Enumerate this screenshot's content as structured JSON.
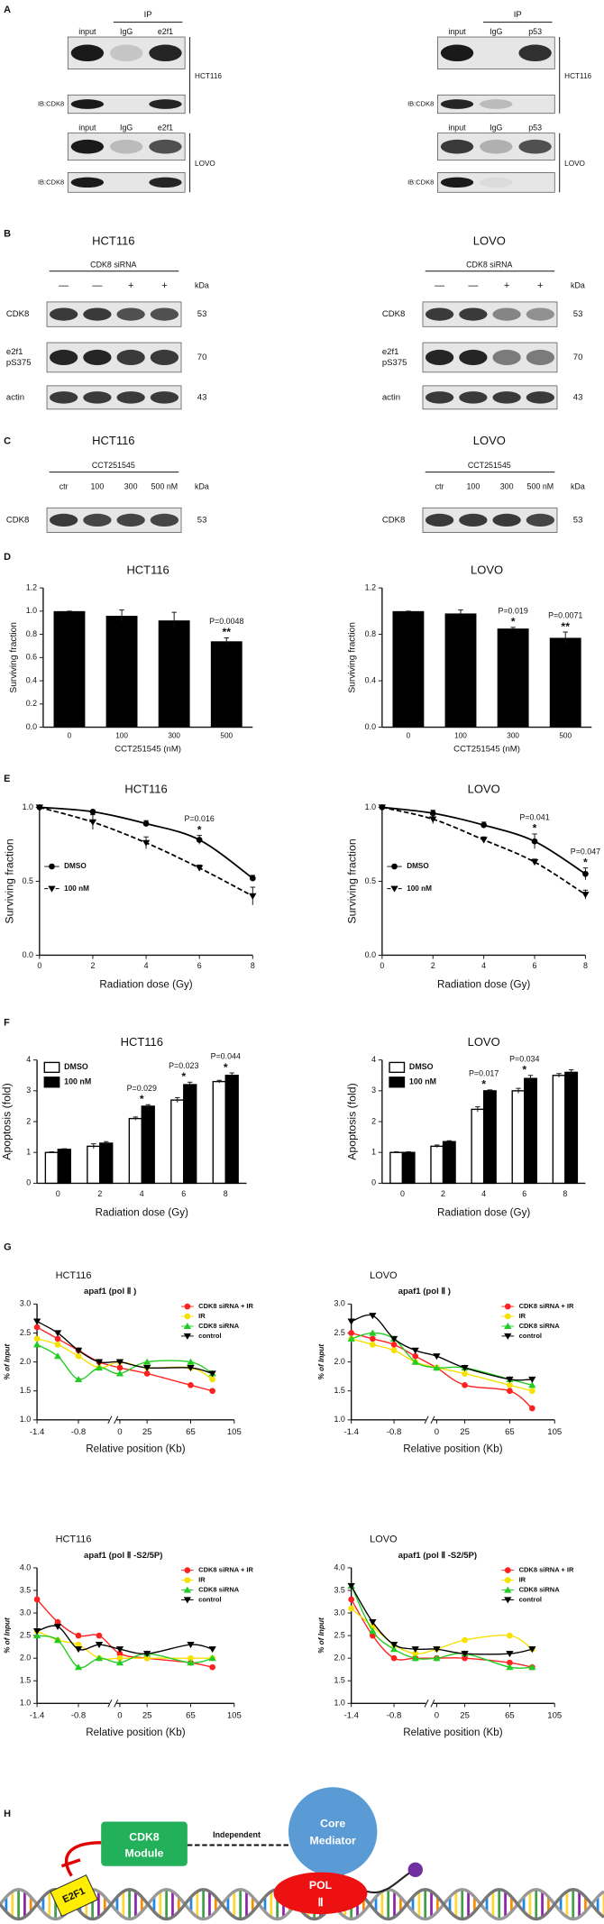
{
  "panel_labels": [
    "A",
    "B",
    "C",
    "D",
    "E",
    "F",
    "G",
    "H"
  ],
  "blots": {
    "A": [
      {
        "ip": "IP",
        "cell_lines": [
          "HCT116",
          "LOVO"
        ],
        "lanes": [
          "input",
          "IgG",
          "e2f1"
        ],
        "ib": "IB:CDK8"
      },
      {
        "ip": "IP",
        "cell_lines": [
          "HCT116",
          "LOVO"
        ],
        "lanes": [
          "input",
          "IgG",
          "p53"
        ],
        "ib": "IB:CDK8"
      }
    ],
    "B": [
      {
        "title": "HCT116",
        "treatment": "CDK8 siRNA",
        "lanes": [
          "—",
          "—",
          "+",
          "+"
        ],
        "unit": "kDa",
        "rows": [
          {
            "label": [
              "CDK8"
            ],
            "kda": 53
          },
          {
            "label": [
              "e2f1",
              "pS375"
            ],
            "kda": 70
          },
          {
            "label": [
              "actin"
            ],
            "kda": 43
          }
        ]
      },
      {
        "title": "LOVO",
        "treatment": "CDK8 siRNA",
        "lanes": [
          "—",
          "—",
          "+",
          "+"
        ],
        "unit": "kDa",
        "rows": [
          {
            "label": [
              "CDK8"
            ],
            "kda": 53
          },
          {
            "label": [
              "e2f1",
              "pS375"
            ],
            "kda": 70
          },
          {
            "label": [
              "actin"
            ],
            "kda": 43
          }
        ]
      }
    ],
    "C": [
      {
        "title": "HCT116",
        "treatment": "CCT251545",
        "lanes": [
          "ctr",
          "100",
          "300",
          "500 nM"
        ],
        "unit": "kDa",
        "rows": [
          {
            "label": [
              "CDK8"
            ],
            "kda": 53
          }
        ]
      },
      {
        "title": "LOVO",
        "treatment": "CCT251545",
        "lanes": [
          "ctr",
          "100",
          "300",
          "500 nM"
        ],
        "unit": "kDa",
        "rows": [
          {
            "label": [
              "CDK8"
            ],
            "kda": 53
          }
        ]
      }
    ]
  },
  "chart_data": [
    {
      "type": "bar",
      "title": "HCT116",
      "categories": [
        "0",
        "100",
        "300",
        "500"
      ],
      "values": [
        1.0,
        0.96,
        0.92,
        0.74
      ],
      "errors": [
        0,
        0.05,
        0.07,
        0.03
      ],
      "p_values": [
        null,
        null,
        null,
        "P=0.0048"
      ],
      "significance": [
        null,
        null,
        null,
        "**"
      ],
      "color": "#000000",
      "xlabel": "CCT251545 (nM)",
      "ylabel": "Surviving fraction",
      "ylim": [
        0,
        1.2
      ],
      "yticks": [
        {
          "value": 0,
          "label": "0.0"
        },
        0.2,
        0.4,
        0.6,
        0.8,
        {
          "value": 1,
          "label": "1.0"
        },
        1.2
      ]
    },
    {
      "type": "bar",
      "title": "LOVO",
      "categories": [
        "0",
        "100",
        "300",
        "500"
      ],
      "values": [
        1.0,
        0.98,
        0.85,
        0.77
      ],
      "errors": [
        0,
        0.03,
        0.01,
        0.05
      ],
      "p_values": [
        null,
        null,
        "P=0.019",
        "P=0.0071"
      ],
      "significance": [
        null,
        null,
        "*",
        "**"
      ],
      "color": "#000000",
      "xlabel": "CCT251545 (nM)",
      "ylabel": "Surviving fraction",
      "ylim": [
        0,
        1.2
      ],
      "yticks": [
        {
          "value": 0,
          "label": "0.0"
        },
        0.4,
        0.8,
        1.2
      ]
    },
    {
      "type": "line",
      "title": "HCT116",
      "x": [
        0,
        2,
        4,
        6,
        8
      ],
      "series": [
        {
          "name": "DMSO",
          "color": "#000000",
          "marker": "circle",
          "line_style": "solid",
          "values": [
            1.0,
            0.97,
            0.89,
            0.78,
            0.52
          ],
          "errors": [
            0,
            0.01,
            0.02,
            0.03,
            0.02
          ]
        },
        {
          "name": "100 nM",
          "color": "#000000",
          "marker": "triangle-down",
          "line_style": "dashed",
          "values": [
            1.0,
            0.9,
            0.76,
            0.59,
            0.4
          ],
          "errors": [
            0,
            0.05,
            0.04,
            0.02,
            0.06
          ]
        }
      ],
      "p_values": [
        null,
        null,
        null,
        "P=0.016",
        null
      ],
      "significance": [
        null,
        null,
        null,
        "*",
        null
      ],
      "xlabel": "Radiation dose (Gy)",
      "ylabel": "Surviving fraction",
      "xlim": [
        0,
        8
      ],
      "xticks": [
        0,
        2,
        4,
        6,
        8
      ],
      "ylim": [
        0,
        1
      ],
      "yticks": [
        {
          "value": 0,
          "label": "0.0"
        },
        0.5,
        {
          "value": 1,
          "label": "1.0"
        }
      ],
      "legend": "left"
    },
    {
      "type": "line",
      "title": "LOVO",
      "x": [
        0,
        2,
        4,
        6,
        8
      ],
      "series": [
        {
          "name": "DMSO",
          "color": "#000000",
          "marker": "circle",
          "line_style": "solid",
          "values": [
            1.0,
            0.96,
            0.88,
            0.77,
            0.55
          ],
          "errors": [
            0,
            0.02,
            0.02,
            0.05,
            0.04
          ]
        },
        {
          "name": "100 nM",
          "color": "#000000",
          "marker": "triangle-down",
          "line_style": "dashed",
          "values": [
            1.0,
            0.92,
            0.78,
            0.63,
            0.41
          ],
          "errors": [
            0,
            0.03,
            0.02,
            0.02,
            0.03
          ]
        }
      ],
      "p_values": [
        null,
        null,
        null,
        "P=0.041",
        "P=0.047"
      ],
      "significance": [
        null,
        null,
        null,
        "*",
        "*"
      ],
      "xlabel": "Radiation dose (Gy)",
      "ylabel": "Surviving fraction",
      "xlim": [
        0,
        8
      ],
      "xticks": [
        0,
        2,
        4,
        6,
        8
      ],
      "ylim": [
        0,
        1
      ],
      "yticks": [
        {
          "value": 0,
          "label": "0.0"
        },
        0.5,
        {
          "value": 1,
          "label": "1.0"
        }
      ],
      "legend": "left"
    },
    {
      "type": "grouped_bar",
      "title": "HCT116",
      "categories": [
        "0",
        "2",
        "4",
        "6",
        "8"
      ],
      "series": [
        {
          "name": "DMSO",
          "color": "#ffffff",
          "values": [
            1.0,
            1.2,
            2.1,
            2.7,
            3.3
          ],
          "errors": [
            0.02,
            0.08,
            0.05,
            0.08,
            0.04
          ]
        },
        {
          "name": "100 nM",
          "color": "#000000",
          "values": [
            1.1,
            1.3,
            2.5,
            3.2,
            3.5
          ],
          "errors": [
            0.02,
            0.05,
            0.05,
            0.08,
            0.08
          ]
        }
      ],
      "p_values": [
        null,
        null,
        "P=0.029",
        "P=0.023",
        "P=0.044"
      ],
      "significance": [
        null,
        null,
        "*",
        "*",
        "*"
      ],
      "xlabel": "Radiation dose (Gy)",
      "ylabel": "Apoptosis (fold)",
      "ylim": [
        0,
        4
      ],
      "yticks": [
        0,
        1,
        2,
        3,
        4
      ],
      "legend": "upper left"
    },
    {
      "type": "grouped_bar",
      "title": "LOVO",
      "categories": [
        "0",
        "2",
        "4",
        "6",
        "8"
      ],
      "series": [
        {
          "name": "DMSO",
          "color": "#ffffff",
          "values": [
            1.0,
            1.2,
            2.4,
            3.0,
            3.5
          ],
          "errors": [
            0.02,
            0.04,
            0.08,
            0.08,
            0.06
          ]
        },
        {
          "name": "100 nM",
          "color": "#000000",
          "values": [
            1.0,
            1.35,
            3.0,
            3.4,
            3.6
          ],
          "errors": [
            0.02,
            0.03,
            0.03,
            0.1,
            0.08
          ]
        }
      ],
      "p_values": [
        null,
        null,
        "P=0.017",
        "P=0.034",
        null
      ],
      "significance": [
        null,
        null,
        "*",
        "*",
        null
      ],
      "xlabel": "Radiation dose (Gy)",
      "ylabel": "Apoptosis (fold)",
      "ylim": [
        0,
        4
      ],
      "yticks": [
        0,
        1,
        2,
        3,
        4
      ],
      "legend": "upper left"
    },
    {
      "type": "chip_line",
      "title": "HCT116",
      "subtitle": "apaf1 (pol Ⅱ )",
      "x": [
        -1.4,
        -1.1,
        -0.8,
        -0.5,
        0,
        25,
        65,
        85
      ],
      "x_segments": [
        {
          "xlim": [
            -1.4,
            -0.4
          ],
          "xticks": [
            -1.4,
            -0.8
          ]
        },
        {
          "xlim": [
            0,
            105
          ],
          "xticks": [
            0,
            25,
            65,
            105
          ]
        }
      ],
      "series": [
        {
          "name": "CDK8 siRNA + IR",
          "color": "#ff2020",
          "marker": "circle",
          "values": [
            2.6,
            2.4,
            2.2,
            2.0,
            1.9,
            1.8,
            1.6,
            1.5
          ]
        },
        {
          "name": "IR",
          "color": "#f5e000",
          "marker": "circle",
          "values": [
            2.4,
            2.3,
            2.1,
            1.9,
            2.0,
            1.9,
            1.9,
            1.7
          ]
        },
        {
          "name": "CDK8 siRNA",
          "color": "#22cc22",
          "marker": "triangle-up",
          "values": [
            2.3,
            2.1,
            1.7,
            1.9,
            1.8,
            2.0,
            2.0,
            1.8
          ]
        },
        {
          "name": "control",
          "color": "#000000",
          "marker": "triangle-down",
          "values": [
            2.7,
            2.5,
            2.2,
            2.0,
            2.0,
            1.9,
            1.9,
            1.8
          ]
        }
      ],
      "xlabel": "Relative position (Kb)",
      "ylabel": "% of Input",
      "ylim": [
        1,
        3
      ],
      "yticks": [
        {
          "value": 1,
          "label": "1.0"
        },
        1.5,
        {
          "value": 2,
          "label": "2.0"
        },
        2.5,
        {
          "value": 3,
          "label": "3.0"
        }
      ],
      "legend": "upper right"
    },
    {
      "type": "chip_line",
      "title": "LOVO",
      "subtitle": "apaf1 (pol Ⅱ )",
      "x": [
        -1.4,
        -1.1,
        -0.8,
        -0.5,
        0,
        25,
        65,
        85
      ],
      "x_segments": [
        {
          "xlim": [
            -1.4,
            -0.4
          ],
          "xticks": [
            -1.4,
            -0.8
          ]
        },
        {
          "xlim": [
            0,
            105
          ],
          "xticks": [
            0,
            25,
            65,
            105
          ]
        }
      ],
      "series": [
        {
          "name": "CDK8 siRNA + IR",
          "color": "#ff2020",
          "marker": "circle",
          "values": [
            2.5,
            2.4,
            2.3,
            2.1,
            1.9,
            1.6,
            1.5,
            1.2
          ]
        },
        {
          "name": "IR",
          "color": "#f5e000",
          "marker": "circle",
          "values": [
            2.4,
            2.3,
            2.2,
            2.0,
            1.9,
            1.8,
            1.6,
            1.5
          ]
        },
        {
          "name": "CDK8 siRNA",
          "color": "#22cc22",
          "marker": "triangle-up",
          "values": [
            2.4,
            2.5,
            2.4,
            2.0,
            1.9,
            1.9,
            1.7,
            1.6
          ]
        },
        {
          "name": "control",
          "color": "#000000",
          "marker": "triangle-down",
          "values": [
            2.7,
            2.8,
            2.4,
            2.2,
            2.1,
            1.9,
            1.7,
            1.7
          ]
        }
      ],
      "xlabel": "Relative position (Kb)",
      "ylabel": "% of Input",
      "ylim": [
        1,
        3
      ],
      "yticks": [
        {
          "value": 1,
          "label": "1.0"
        },
        1.5,
        {
          "value": 2,
          "label": "2.0"
        },
        2.5,
        {
          "value": 3,
          "label": "3.0"
        }
      ],
      "legend": "upper right"
    },
    {
      "type": "chip_line",
      "title": "HCT116",
      "subtitle": "apaf1 (pol Ⅱ -S2/5P)",
      "x": [
        -1.4,
        -1.1,
        -0.8,
        -0.5,
        0,
        25,
        65,
        85
      ],
      "x_segments": [
        {
          "xlim": [
            -1.4,
            -0.4
          ],
          "xticks": [
            -1.4,
            -0.8
          ]
        },
        {
          "xlim": [
            0,
            105
          ],
          "xticks": [
            0,
            25,
            65,
            105
          ]
        }
      ],
      "series": [
        {
          "name": "CDK8 siRNA + IR",
          "color": "#ff2020",
          "marker": "circle",
          "values": [
            3.3,
            2.8,
            2.5,
            2.5,
            2.1,
            2.0,
            1.9,
            1.8
          ]
        },
        {
          "name": "IR",
          "color": "#f5e000",
          "marker": "circle",
          "values": [
            2.6,
            2.4,
            2.3,
            2.0,
            2.0,
            2.0,
            2.0,
            2.0
          ]
        },
        {
          "name": "CDK8 siRNA",
          "color": "#22cc22",
          "marker": "triangle-up",
          "values": [
            2.5,
            2.4,
            1.8,
            2.0,
            1.9,
            2.1,
            1.9,
            2.0
          ]
        },
        {
          "name": "control",
          "color": "#000000",
          "marker": "triangle-down",
          "values": [
            2.6,
            2.7,
            2.2,
            2.3,
            2.2,
            2.1,
            2.3,
            2.2
          ]
        }
      ],
      "xlabel": "Relative position (Kb)",
      "ylabel": "% of Input",
      "ylim": [
        1,
        4
      ],
      "yticks": [
        {
          "value": 1,
          "label": "1.0"
        },
        1.5,
        {
          "value": 2,
          "label": "2.0"
        },
        2.5,
        {
          "value": 3,
          "label": "3.0"
        },
        3.5,
        {
          "value": 4,
          "label": "4.0"
        }
      ],
      "legend": "upper right"
    },
    {
      "type": "chip_line",
      "title": "LOVO",
      "subtitle": "apaf1 (pol Ⅱ -S2/5P)",
      "x": [
        -1.4,
        -1.1,
        -0.8,
        -0.5,
        0,
        25,
        65,
        85
      ],
      "x_segments": [
        {
          "xlim": [
            -1.4,
            -0.4
          ],
          "xticks": [
            -1.4,
            -0.8
          ]
        },
        {
          "xlim": [
            0,
            105
          ],
          "xticks": [
            0,
            25,
            65,
            105
          ]
        }
      ],
      "series": [
        {
          "name": "CDK8 siRNA + IR",
          "color": "#ff2020",
          "marker": "circle",
          "values": [
            3.3,
            2.5,
            2.0,
            2.0,
            2.0,
            2.0,
            1.9,
            1.8
          ]
        },
        {
          "name": "IR",
          "color": "#f5e000",
          "marker": "circle",
          "values": [
            3.1,
            2.7,
            2.3,
            2.1,
            2.2,
            2.4,
            2.5,
            2.2
          ]
        },
        {
          "name": "CDK8 siRNA",
          "color": "#22cc22",
          "marker": "triangle-up",
          "values": [
            3.6,
            2.6,
            2.2,
            2.0,
            2.0,
            2.1,
            1.8,
            1.8
          ]
        },
        {
          "name": "control",
          "color": "#000000",
          "marker": "triangle-down",
          "values": [
            3.6,
            2.8,
            2.3,
            2.2,
            2.2,
            2.1,
            2.1,
            2.2
          ]
        }
      ],
      "xlabel": "Relative position (Kb)",
      "ylabel": "% of Input",
      "ylim": [
        1,
        4
      ],
      "yticks": [
        {
          "value": 1,
          "label": "1.0"
        },
        1.5,
        {
          "value": 2,
          "label": "2.0"
        },
        2.5,
        {
          "value": 3,
          "label": "3.0"
        },
        3.5,
        {
          "value": 4,
          "label": "4.0"
        }
      ],
      "legend": "upper right"
    }
  ],
  "diagram": {
    "cdk8_module": [
      "CDK8",
      "Module"
    ],
    "link": "Independent",
    "core_mediator": [
      "Core",
      "Mediator"
    ],
    "pol2": [
      "POL",
      "Ⅱ"
    ],
    "e2f1": "E2F1"
  }
}
